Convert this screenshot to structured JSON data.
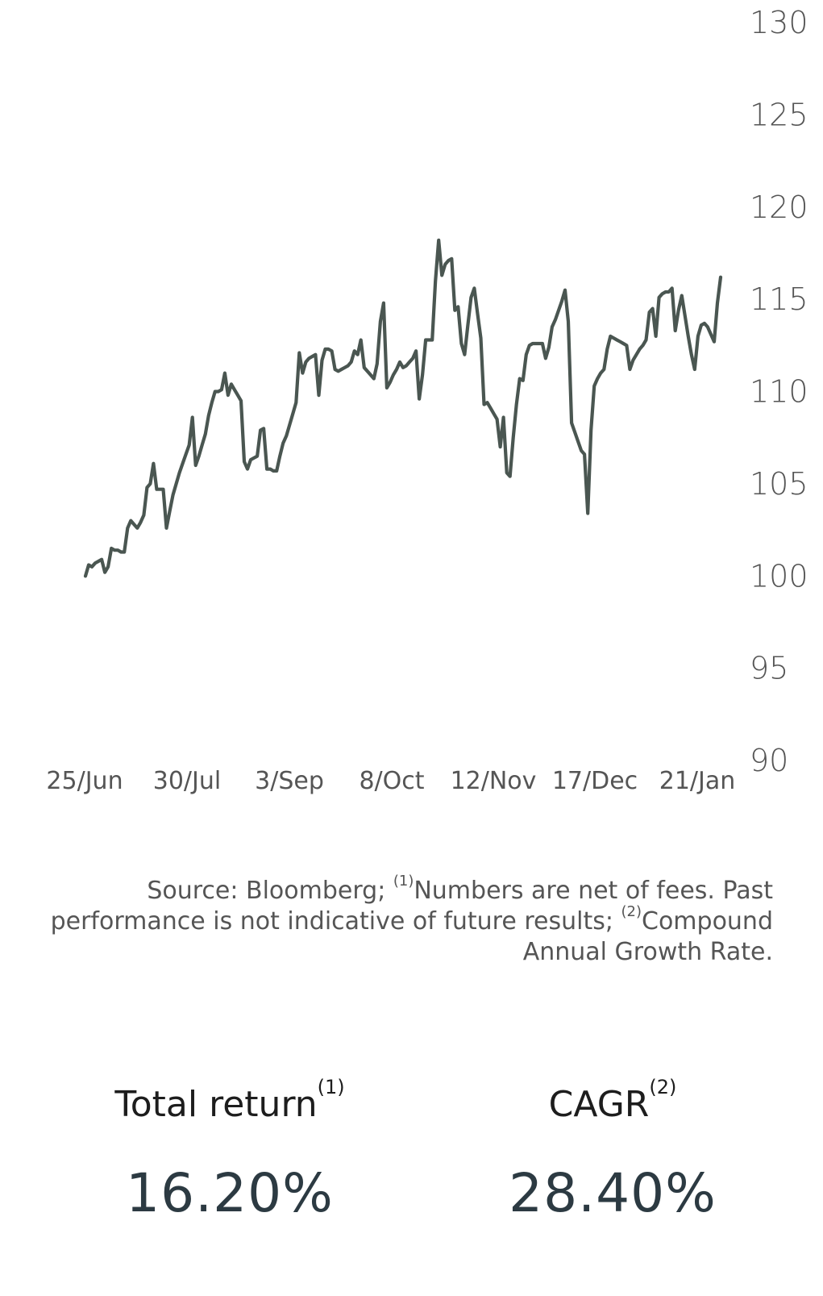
{
  "chart_data": {
    "type": "line",
    "x_tick_labels": [
      "25/Jun",
      "30/Jul",
      "3/Sep",
      "8/Oct",
      "12/Nov",
      "17/Dec",
      "21/Jan"
    ],
    "y_ticks": [
      90,
      95,
      100,
      105,
      110,
      115,
      120,
      125,
      130
    ],
    "ylim": [
      90,
      130
    ],
    "y_axis_side": "right",
    "color": "#4a5651",
    "series": [
      {
        "values": [
          100.0,
          100.6,
          100.5,
          100.7,
          100.8,
          100.9,
          100.2,
          100.5,
          101.5,
          101.4,
          101.4,
          101.3,
          101.3,
          102.6,
          103.0,
          102.8,
          102.6,
          102.9,
          103.3,
          104.8,
          105.0,
          106.1,
          104.7,
          104.7,
          104.7,
          102.6,
          103.5,
          104.4,
          105.0,
          105.6,
          106.1,
          106.6,
          107.1,
          108.6,
          106.0,
          106.5,
          107.1,
          107.7,
          108.7,
          109.4,
          110.0,
          110.0,
          110.1,
          111.0,
          109.8,
          110.4,
          110.1,
          109.8,
          109.5,
          106.2,
          105.8,
          106.3,
          106.4,
          106.5,
          107.9,
          108.0,
          105.8,
          105.8,
          105.7,
          105.7,
          106.5,
          107.2,
          107.6,
          108.2,
          108.8,
          109.4,
          112.1,
          111.0,
          111.6,
          111.8,
          111.9,
          112.0,
          109.8,
          111.7,
          112.3,
          112.3,
          112.2,
          111.2,
          111.1,
          111.2,
          111.3,
          111.4,
          111.6,
          112.2,
          112.0,
          112.8,
          111.3,
          111.1,
          110.9,
          110.7,
          111.5,
          113.8,
          114.8,
          110.2,
          110.5,
          110.9,
          111.2,
          111.6,
          111.3,
          111.4,
          111.6,
          111.8,
          112.2,
          109.6,
          110.9,
          112.8,
          112.8,
          112.8,
          116.0,
          118.2,
          116.3,
          116.9,
          117.1,
          117.2,
          114.4,
          114.6,
          112.6,
          112.0,
          113.6,
          115.1,
          115.6,
          114.2,
          112.9,
          109.3,
          109.4,
          109.1,
          108.8,
          108.5,
          107.0,
          108.6,
          105.6,
          105.4,
          107.5,
          109.3,
          110.7,
          110.6,
          112.0,
          112.5,
          112.6,
          112.6,
          112.6,
          112.6,
          111.8,
          112.4,
          113.5,
          113.9,
          114.4,
          114.9,
          115.5,
          113.8,
          108.3,
          107.8,
          107.3,
          106.8,
          106.6,
          103.4,
          107.9,
          110.3,
          110.7,
          111.0,
          111.2,
          112.3,
          113.0,
          112.9,
          112.8,
          112.7,
          112.6,
          112.5,
          111.2,
          111.7,
          112.0,
          112.3,
          112.5,
          112.8,
          114.3,
          114.5,
          113.0,
          115.1,
          115.3,
          115.4,
          115.4,
          115.6,
          113.3,
          114.4,
          115.2,
          114.1,
          113.0,
          112.0,
          111.2,
          113.0,
          113.6,
          113.7,
          113.5,
          113.1,
          112.7,
          114.8,
          116.2
        ]
      }
    ]
  },
  "footnote": {
    "part1": "Source: Bloomberg; ",
    "sup1": "(1)",
    "part2": "Numbers are net of fees. Past performance is not indicative of future results; ",
    "sup2": "(2)",
    "part3": "Compound Annual Growth Rate."
  },
  "stats": {
    "total_return": {
      "label": "Total return",
      "sup": "(1)",
      "value": "16.20%"
    },
    "cagr": {
      "label": "CAGR",
      "sup": "(2)",
      "value": "28.40%"
    }
  }
}
